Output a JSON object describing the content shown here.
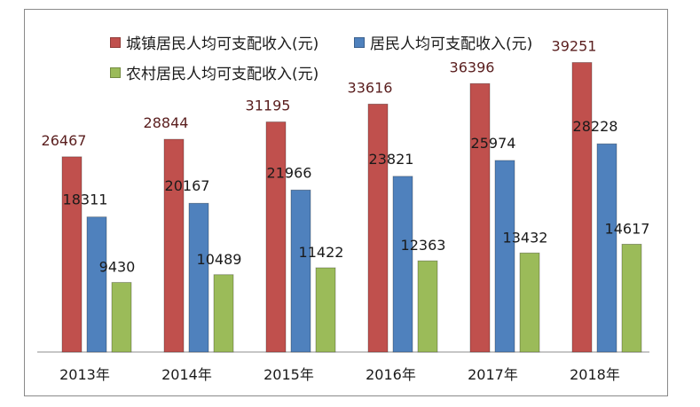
{
  "chart_data": {
    "type": "bar",
    "title": "",
    "xlabel": "",
    "ylabel": "",
    "ylim": [
      0,
      44000
    ],
    "categories": [
      "2013年",
      "2014年",
      "2015年",
      "2016年",
      "2017年",
      "2018年"
    ],
    "series": [
      {
        "name": "城镇居民人均可支配收入(元)",
        "color": "#c0504d",
        "values": [
          26467,
          28844,
          31195,
          33616,
          36396,
          39251
        ]
      },
      {
        "name": "居民人均可支配收入(元)",
        "color": "#4f81bd",
        "values": [
          18311,
          20167,
          21966,
          23821,
          25974,
          28228
        ]
      },
      {
        "name": "农村居民人均可支配收入(元)",
        "color": "#9bbb59",
        "values": [
          9430,
          10489,
          11422,
          12363,
          13432,
          14617
        ]
      }
    ],
    "grid": false,
    "legend_position": "top-left"
  }
}
